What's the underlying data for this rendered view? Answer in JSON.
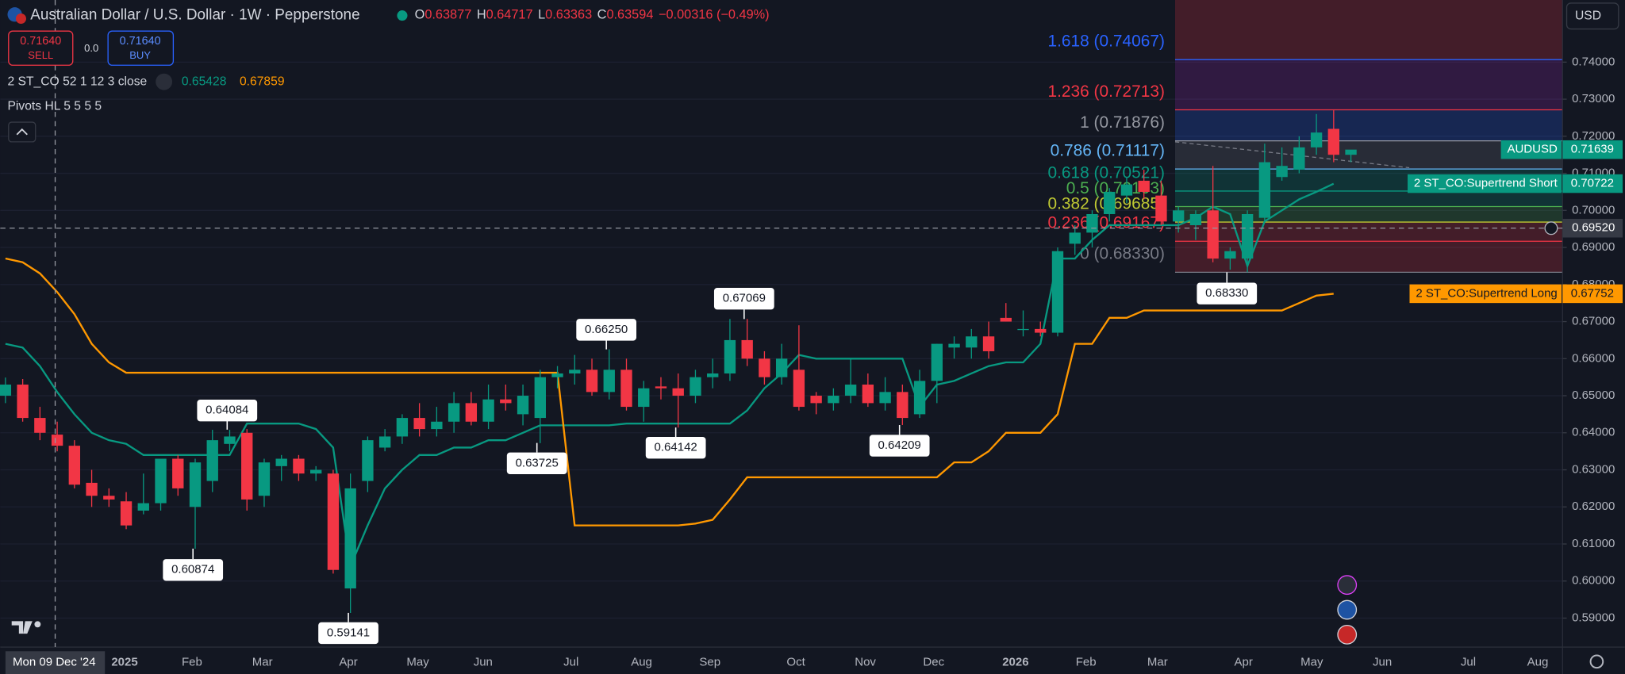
{
  "header": {
    "title": "Australian Dollar / U.S. Dollar · 1W · Pepperstone",
    "ohlc": [
      {
        "key": "O",
        "value": "0.63877"
      },
      {
        "key": "H",
        "value": "0.64717"
      },
      {
        "key": "L",
        "value": "0.63363"
      },
      {
        "key": "C",
        "value": "0.63594"
      }
    ],
    "change": "−0.00316 (−0.49%)"
  },
  "trade": {
    "sell_price": "0.71640",
    "sell": "SELL",
    "spread": "0.0",
    "buy_price": "0.71640",
    "buy": "BUY"
  },
  "indicators": [
    {
      "name": "2 ST_CO 52 1 12 3 close",
      "values": [
        "0.65428",
        "0.67859"
      ]
    },
    {
      "name": "Pivots HL 5 5 5 5"
    }
  ],
  "currency": "USD",
  "chart_data": {
    "type": "candlestick",
    "up_color": "#089981",
    "down_color": "#f23645",
    "ylim": [
      0.58218,
      0.75676
    ],
    "yticks": [
      {
        "value": 0.74,
        "label": "0.74000"
      },
      {
        "value": 0.73,
        "label": "0.73000"
      },
      {
        "value": 0.72,
        "label": "0.72000"
      },
      {
        "value": 0.71,
        "label": "0.71000"
      },
      {
        "value": 0.7,
        "label": "0.70000"
      },
      {
        "value": 0.69,
        "label": "0.69000"
      },
      {
        "value": 0.68,
        "label": "0.68000"
      },
      {
        "value": 0.67,
        "label": "0.67000"
      },
      {
        "value": 0.66,
        "label": "0.66000"
      },
      {
        "value": 0.65,
        "label": "0.65000"
      },
      {
        "value": 0.64,
        "label": "0.64000"
      },
      {
        "value": 0.63,
        "label": "0.63000"
      },
      {
        "value": 0.62,
        "label": "0.62000"
      },
      {
        "value": 0.61,
        "label": "0.61000"
      },
      {
        "value": 0.6,
        "label": "0.60000"
      },
      {
        "value": 0.59,
        "label": "0.59000"
      }
    ],
    "x_labels": [
      "2025",
      "Feb",
      "Mar",
      "Apr",
      "May",
      "Jun",
      "Jul",
      "Aug",
      "Sep",
      "Oct",
      "Nov",
      "Dec",
      "2026",
      "Feb",
      "Mar",
      "Apr",
      "May",
      "Jun",
      "Jul",
      "Aug"
    ],
    "candles": [
      {
        "o": 0.65,
        "h": 0.6549,
        "l": 0.648,
        "c": 0.653
      },
      {
        "o": 0.653,
        "h": 0.6545,
        "l": 0.643,
        "c": 0.644
      },
      {
        "o": 0.644,
        "h": 0.647,
        "l": 0.638,
        "c": 0.64
      },
      {
        "o": 0.6395,
        "h": 0.643,
        "l": 0.635,
        "c": 0.6365
      },
      {
        "o": 0.6365,
        "h": 0.638,
        "l": 0.625,
        "c": 0.626
      },
      {
        "o": 0.6265,
        "h": 0.63,
        "l": 0.62,
        "c": 0.623
      },
      {
        "o": 0.623,
        "h": 0.625,
        "l": 0.62,
        "c": 0.622
      },
      {
        "o": 0.6215,
        "h": 0.624,
        "l": 0.614,
        "c": 0.615
      },
      {
        "o": 0.619,
        "h": 0.629,
        "l": 0.618,
        "c": 0.621
      },
      {
        "o": 0.621,
        "h": 0.633,
        "l": 0.619,
        "c": 0.633
      },
      {
        "o": 0.633,
        "h": 0.634,
        "l": 0.623,
        "c": 0.625
      },
      {
        "o": 0.62,
        "h": 0.633,
        "l": 0.6087,
        "c": 0.632
      },
      {
        "o": 0.627,
        "h": 0.6408,
        "l": 0.624,
        "c": 0.638
      },
      {
        "o": 0.637,
        "h": 0.6408,
        "l": 0.635,
        "c": 0.639
      },
      {
        "o": 0.64,
        "h": 0.641,
        "l": 0.619,
        "c": 0.622
      },
      {
        "o": 0.623,
        "h": 0.633,
        "l": 0.62,
        "c": 0.632
      },
      {
        "o": 0.631,
        "h": 0.634,
        "l": 0.627,
        "c": 0.633
      },
      {
        "o": 0.633,
        "h": 0.634,
        "l": 0.627,
        "c": 0.629
      },
      {
        "o": 0.629,
        "h": 0.631,
        "l": 0.627,
        "c": 0.63
      },
      {
        "o": 0.629,
        "h": 0.63,
        "l": 0.602,
        "c": 0.603
      },
      {
        "o": 0.598,
        "h": 0.629,
        "l": 0.5914,
        "c": 0.625
      },
      {
        "o": 0.627,
        "h": 0.639,
        "l": 0.624,
        "c": 0.638
      },
      {
        "o": 0.636,
        "h": 0.641,
        "l": 0.635,
        "c": 0.639
      },
      {
        "o": 0.639,
        "h": 0.645,
        "l": 0.637,
        "c": 0.644
      },
      {
        "o": 0.644,
        "h": 0.648,
        "l": 0.639,
        "c": 0.641
      },
      {
        "o": 0.641,
        "h": 0.647,
        "l": 0.639,
        "c": 0.643
      },
      {
        "o": 0.643,
        "h": 0.651,
        "l": 0.64,
        "c": 0.648
      },
      {
        "o": 0.648,
        "h": 0.651,
        "l": 0.642,
        "c": 0.643
      },
      {
        "o": 0.643,
        "h": 0.653,
        "l": 0.641,
        "c": 0.649
      },
      {
        "o": 0.649,
        "h": 0.653,
        "l": 0.646,
        "c": 0.648
      },
      {
        "o": 0.645,
        "h": 0.653,
        "l": 0.642,
        "c": 0.65
      },
      {
        "o": 0.644,
        "h": 0.657,
        "l": 0.6372,
        "c": 0.655
      },
      {
        "o": 0.655,
        "h": 0.658,
        "l": 0.652,
        "c": 0.656
      },
      {
        "o": 0.656,
        "h": 0.661,
        "l": 0.653,
        "c": 0.657
      },
      {
        "o": 0.657,
        "h": 0.66,
        "l": 0.65,
        "c": 0.651
      },
      {
        "o": 0.651,
        "h": 0.6625,
        "l": 0.649,
        "c": 0.657
      },
      {
        "o": 0.657,
        "h": 0.66,
        "l": 0.646,
        "c": 0.647
      },
      {
        "o": 0.647,
        "h": 0.654,
        "l": 0.643,
        "c": 0.652
      },
      {
        "o": 0.6525,
        "h": 0.655,
        "l": 0.649,
        "c": 0.652
      },
      {
        "o": 0.652,
        "h": 0.656,
        "l": 0.6414,
        "c": 0.65
      },
      {
        "o": 0.65,
        "h": 0.657,
        "l": 0.648,
        "c": 0.655
      },
      {
        "o": 0.655,
        "h": 0.66,
        "l": 0.652,
        "c": 0.656
      },
      {
        "o": 0.656,
        "h": 0.6707,
        "l": 0.654,
        "c": 0.665
      },
      {
        "o": 0.665,
        "h": 0.6707,
        "l": 0.658,
        "c": 0.66
      },
      {
        "o": 0.66,
        "h": 0.662,
        "l": 0.653,
        "c": 0.655
      },
      {
        "o": 0.655,
        "h": 0.664,
        "l": 0.653,
        "c": 0.66
      },
      {
        "o": 0.657,
        "h": 0.669,
        "l": 0.646,
        "c": 0.647
      },
      {
        "o": 0.65,
        "h": 0.651,
        "l": 0.645,
        "c": 0.648
      },
      {
        "o": 0.648,
        "h": 0.652,
        "l": 0.646,
        "c": 0.65
      },
      {
        "o": 0.65,
        "h": 0.66,
        "l": 0.648,
        "c": 0.653
      },
      {
        "o": 0.653,
        "h": 0.656,
        "l": 0.647,
        "c": 0.648
      },
      {
        "o": 0.648,
        "h": 0.655,
        "l": 0.646,
        "c": 0.651
      },
      {
        "o": 0.651,
        "h": 0.653,
        "l": 0.6421,
        "c": 0.644
      },
      {
        "o": 0.645,
        "h": 0.657,
        "l": 0.644,
        "c": 0.654
      },
      {
        "o": 0.654,
        "h": 0.664,
        "l": 0.648,
        "c": 0.664
      },
      {
        "o": 0.663,
        "h": 0.666,
        "l": 0.66,
        "c": 0.664
      },
      {
        "o": 0.663,
        "h": 0.668,
        "l": 0.66,
        "c": 0.666
      },
      {
        "o": 0.666,
        "h": 0.67,
        "l": 0.66,
        "c": 0.662
      },
      {
        "o": 0.671,
        "h": 0.675,
        "l": 0.67,
        "c": 0.67
      },
      {
        "o": 0.668,
        "h": 0.673,
        "l": 0.666,
        "c": 0.668
      },
      {
        "o": 0.668,
        "h": 0.67,
        "l": 0.666,
        "c": 0.667
      },
      {
        "o": 0.667,
        "h": 0.69,
        "l": 0.666,
        "c": 0.689
      },
      {
        "o": 0.691,
        "h": 0.696,
        "l": 0.688,
        "c": 0.694
      },
      {
        "o": 0.694,
        "h": 0.7,
        "l": 0.69,
        "c": 0.699
      },
      {
        "o": 0.699,
        "h": 0.706,
        "l": 0.697,
        "c": 0.705
      },
      {
        "o": 0.704,
        "h": 0.709,
        "l": 0.702,
        "c": 0.707
      },
      {
        "o": 0.708,
        "h": 0.711,
        "l": 0.703,
        "c": 0.705
      },
      {
        "o": 0.704,
        "h": 0.708,
        "l": 0.696,
        "c": 0.697
      },
      {
        "o": 0.697,
        "h": 0.701,
        "l": 0.694,
        "c": 0.7
      },
      {
        "o": 0.696,
        "h": 0.7,
        "l": 0.692,
        "c": 0.699
      },
      {
        "o": 0.7,
        "h": 0.712,
        "l": 0.686,
        "c": 0.687
      },
      {
        "o": 0.687,
        "h": 0.69,
        "l": 0.684,
        "c": 0.689
      },
      {
        "o": 0.687,
        "h": 0.7,
        "l": 0.6833,
        "c": 0.699
      },
      {
        "o": 0.698,
        "h": 0.718,
        "l": 0.697,
        "c": 0.713
      },
      {
        "o": 0.709,
        "h": 0.717,
        "l": 0.708,
        "c": 0.712
      },
      {
        "o": 0.711,
        "h": 0.72,
        "l": 0.71,
        "c": 0.717
      },
      {
        "o": 0.717,
        "h": 0.726,
        "l": 0.715,
        "c": 0.721
      },
      {
        "o": 0.722,
        "h": 0.727,
        "l": 0.713,
        "c": 0.715
      },
      {
        "o": 0.715,
        "h": 0.716,
        "l": 0.713,
        "c": 0.7164
      }
    ],
    "series": [
      {
        "name": "2 ST_CO:Supertrend Short",
        "color": "#089981",
        "values": [
          0.664,
          0.663,
          0.658,
          0.651,
          0.645,
          0.64,
          0.638,
          0.637,
          0.634,
          0.634,
          0.634,
          0.634,
          0.634,
          0.634,
          0.6425,
          0.6425,
          0.6425,
          0.6425,
          0.641,
          0.636,
          0.604,
          0.615,
          0.625,
          0.63,
          0.634,
          0.634,
          0.636,
          0.636,
          0.638,
          0.638,
          0.64,
          0.642,
          0.642,
          0.642,
          0.642,
          0.642,
          0.6425,
          0.6425,
          0.6425,
          0.6425,
          0.6425,
          0.6425,
          0.6425,
          0.646,
          0.652,
          0.656,
          0.661,
          0.66,
          0.66,
          0.66,
          0.66,
          0.66,
          0.66,
          0.647,
          0.653,
          0.654,
          0.656,
          0.658,
          0.659,
          0.659,
          0.664,
          0.687,
          0.687,
          0.692,
          0.696,
          0.696,
          0.696,
          0.696,
          0.696,
          0.698,
          0.701,
          0.699,
          0.685,
          0.697,
          0.7,
          0.703,
          0.705,
          0.70722,
          null
        ],
        "last": {
          "value": 0.70722,
          "label": "0.70722"
        }
      },
      {
        "name": "2 ST_CO:Supertrend Long",
        "color": "#ff9800",
        "values": [
          0.687,
          0.686,
          0.683,
          0.678,
          0.672,
          0.664,
          0.659,
          0.6562,
          0.6562,
          0.6562,
          0.6562,
          0.6562,
          0.6562,
          0.6562,
          0.6562,
          0.6562,
          0.6562,
          0.6562,
          0.6562,
          0.6562,
          0.6562,
          0.6562,
          0.6562,
          0.6562,
          0.6562,
          0.6562,
          0.6562,
          0.6562,
          0.6562,
          0.6562,
          0.6562,
          0.6562,
          0.6562,
          0.615,
          0.615,
          0.615,
          0.615,
          0.615,
          0.615,
          0.615,
          0.6155,
          0.6165,
          0.622,
          0.628,
          0.628,
          0.628,
          0.628,
          0.628,
          0.628,
          0.628,
          0.628,
          0.628,
          0.628,
          0.628,
          0.628,
          0.632,
          0.632,
          0.635,
          0.64,
          0.64,
          0.64,
          0.645,
          0.664,
          0.664,
          0.671,
          0.671,
          0.673,
          0.673,
          0.673,
          0.673,
          0.673,
          0.673,
          0.673,
          0.673,
          0.673,
          0.675,
          0.677,
          0.67752,
          null
        ],
        "last": {
          "value": 0.67752,
          "label": "0.67752"
        }
      }
    ],
    "symbol": {
      "name": "AUDUSD",
      "value": 0.71639,
      "label": "0.71639",
      "color": "#089981"
    },
    "crosshair": {
      "value": 0.6952,
      "label": "0.69520",
      "date": "Mon 09 Dec '24"
    },
    "fib_levels": [
      {
        "value": 0.6833,
        "label": "0 (0.68330)",
        "color": "#787b86",
        "fill": "#f23645"
      },
      {
        "value": 0.69167,
        "label": "0.236 (0.69167)",
        "color": "#f23645",
        "fill": "#f23645"
      },
      {
        "value": 0.69685,
        "label": "0.382 (0.69685)",
        "color": "#c0ca33",
        "fill": "#4caf50"
      },
      {
        "value": 0.70103,
        "label": "0.5 (0.70103)",
        "color": "#4caf50",
        "fill": "#089981"
      },
      {
        "value": 0.70521,
        "label": "0.618 (0.70521)",
        "color": "#089981",
        "fill": "#089981"
      },
      {
        "value": 0.71117,
        "label": "0.786 (0.71117)",
        "color": "#64b5f6",
        "fill": "#787b86"
      },
      {
        "value": 0.71876,
        "label": "1 (0.71876)",
        "color": "#9598a1",
        "fill": "#2962ff"
      },
      {
        "value": 0.72713,
        "label": "1.236 (0.72713)",
        "color": "#f23645",
        "fill": "#9c27b0"
      },
      {
        "value": 0.74067,
        "label": "1.618 (0.74067)",
        "color": "#2962ff",
        "fill": "#f23645"
      }
    ],
    "pivots": [
      {
        "value": 0.64084,
        "label": "0.64084"
      },
      {
        "value": 0.60874,
        "label": "0.60874"
      },
      {
        "value": 0.59141,
        "label": "0.59141"
      },
      {
        "value": 0.63725,
        "label": "0.63725"
      },
      {
        "value": 0.6625,
        "label": "0.66250"
      },
      {
        "value": 0.64142,
        "label": "0.64142"
      },
      {
        "value": 0.67069,
        "label": "0.67069"
      },
      {
        "value": 0.64209,
        "label": "0.64209"
      },
      {
        "value": 0.6833,
        "label": "0.68330"
      }
    ]
  }
}
